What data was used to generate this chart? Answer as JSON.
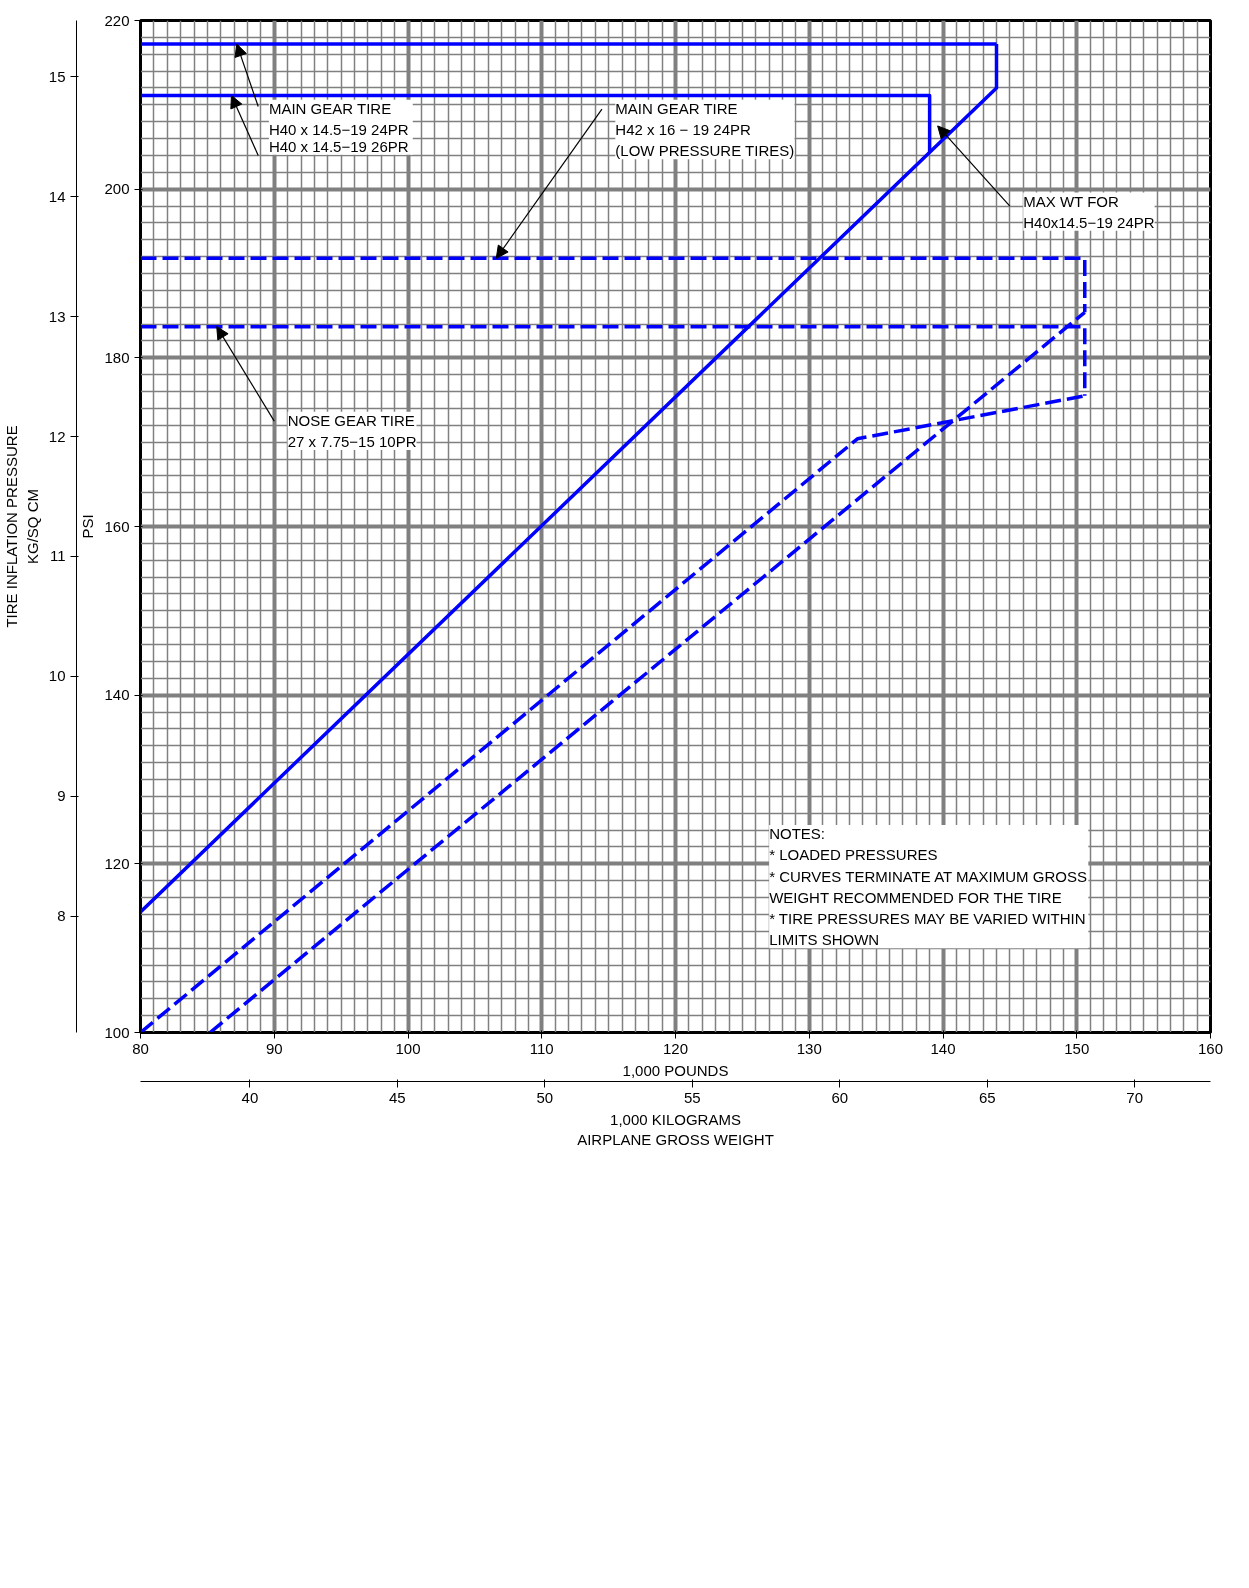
{
  "chart_data": {
    "type": "line",
    "xlabel": "1,000 POUNDS",
    "ylabel": "PSI",
    "x2label": "1,000 KILOGRAMS\nAIRPLANE GROSS WEIGHT",
    "y2label": "TIRE INFLATION PRESSURE\nKG/SQ CM",
    "xlim": [
      80,
      160
    ],
    "xticks": [
      80,
      90,
      100,
      110,
      120,
      130,
      140,
      150,
      160
    ],
    "ylim": [
      100,
      220
    ],
    "yticks": [
      100,
      120,
      140,
      160,
      180,
      200,
      220
    ],
    "x2lim": [
      36.29,
      72.57
    ],
    "x2ticks": [
      40,
      45,
      50,
      55,
      60,
      65,
      70
    ],
    "y2lim": [
      7.03,
      15.47
    ],
    "y2ticks": [
      8,
      9,
      10,
      11,
      12,
      13,
      14,
      15
    ],
    "grid": true,
    "series": [
      {
        "color": "#0000ff",
        "line_style": "solid",
        "x": [
          80,
          144
        ],
        "values": [
          217.2,
          217.2
        ]
      },
      {
        "color": "#0000ff",
        "line_style": "solid",
        "x": [
          80,
          139,
          139
        ],
        "values": [
          211.1,
          211.1,
          204.4
        ]
      },
      {
        "color": "#0000ff",
        "line_style": "solid",
        "x": [
          80,
          144,
          144
        ],
        "values": [
          114.3,
          212.0,
          217.2
        ]
      },
      {
        "color": "#0000ff",
        "line_style": "dashed",
        "x": [
          80,
          150.6,
          150.6
        ],
        "values": [
          191.8,
          191.8,
          185.4
        ]
      },
      {
        "color": "#0000ff",
        "line_style": "dashed",
        "x": [
          85.2,
          150.6
        ],
        "values": [
          100,
          185.4
        ]
      },
      {
        "color": "#0000ff",
        "line_style": "dashed",
        "x": [
          80,
          150.6,
          150.6
        ],
        "values": [
          183.7,
          183.7,
          175.5
        ]
      },
      {
        "color": "#0000ff",
        "line_style": "dashed",
        "x": [
          80,
          133.6,
          150.6
        ],
        "values": [
          100,
          170.4,
          175.5
        ]
      }
    ],
    "annotations": [
      {
        "text": "MAIN GEAR TIRE\nH40 x 14.5−19  24PR",
        "x": 87.2,
        "y": 217.2
      },
      {
        "text": "H40 x 14.5−19  26PR",
        "x": 86.8,
        "y": 211.1
      },
      {
        "text": "MAIN GEAR TIRE\nH42 x 16 − 19  24PR\n(LOW PRESSURE TIRES)",
        "x": 106.6,
        "y": 191.8
      },
      {
        "text": "NOSE GEAR TIRE\n27 x 7.75−15 10PR",
        "x": 85.7,
        "y": 183.7
      },
      "MAX WT FOR\nH40x14.5−19 24PR",
      "NOTES:\n* LOADED PRESSURES\n* CURVES TERMINATE AT MAXIMUM GROSS\n   WEIGHT RECOMMENDED FOR THE TIRE\n* TIRE PRESSURES MAY BE VARIED WITHIN\n   LIMITS SHOWN"
    ]
  }
}
